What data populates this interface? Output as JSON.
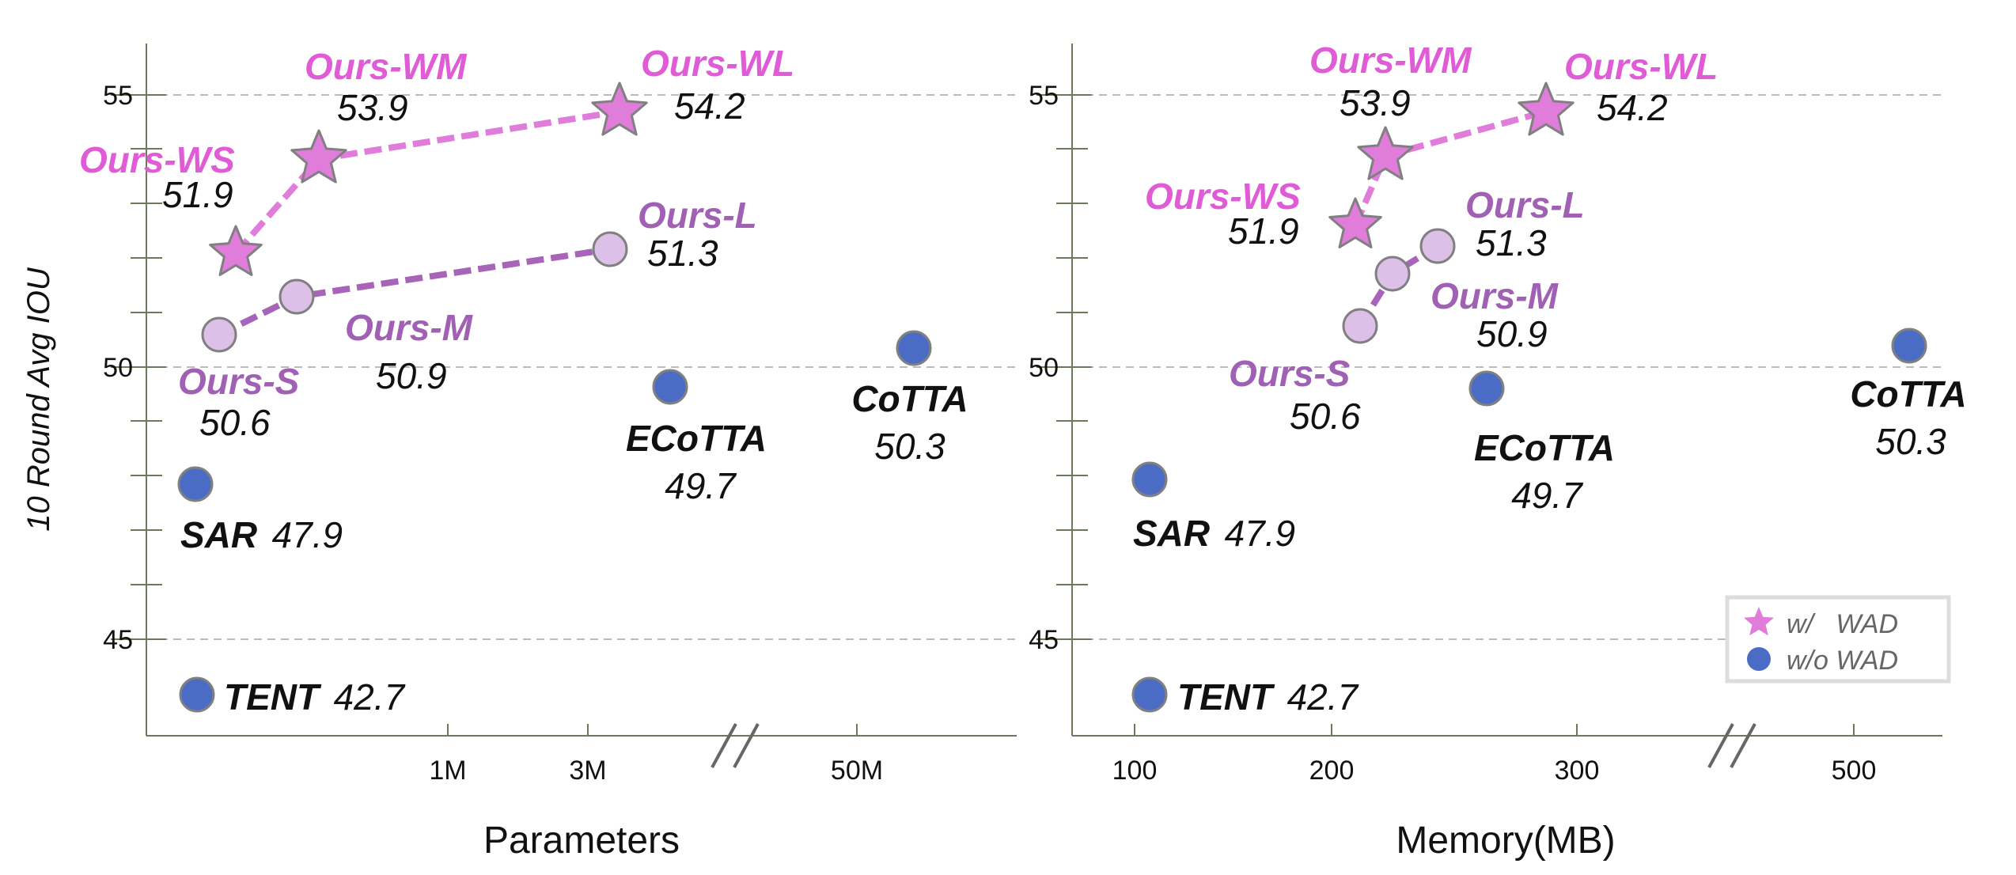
{
  "colors": {
    "wad": "#E07CDA",
    "wad_text": "#E05CD6",
    "ours": "#DCC0E8",
    "ours_line": "#A864B8",
    "ours_text": "#A060B4",
    "baseline": "#4A6CC4",
    "baseline_text": "#111111",
    "grid": "#BBBBBB",
    "axis": "#6B7A5B",
    "marker_edge": "#808080"
  },
  "chart_data": [
    {
      "type": "scatter",
      "xlabel": "Parameters",
      "ylabel": "10 Round Avg IOU",
      "x_scale": "categorical-broken",
      "x_tick_labels": [
        "1M",
        "3M",
        "50M"
      ],
      "y_ticks": [
        "45",
        "50",
        "55"
      ],
      "ylim": [
        43.5,
        56
      ],
      "grid": "horizontal dashed",
      "series": [
        {
          "name": "w/ WAD",
          "points": [
            {
              "label": "Ours-WS",
              "value": "51.9",
              "y": 51.9
            },
            {
              "label": "Ours-WM",
              "value": "53.9",
              "y": 53.9
            },
            {
              "label": "Ours-WL",
              "value": "54.2",
              "y": 54.2
            }
          ]
        },
        {
          "name": "Ours",
          "points": [
            {
              "label": "Ours-S",
              "value": "50.6",
              "y": 50.6
            },
            {
              "label": "Ours-M",
              "value": "50.9",
              "y": 50.9
            },
            {
              "label": "Ours-L",
              "value": "51.3",
              "y": 51.3
            }
          ]
        },
        {
          "name": "w/o WAD",
          "points": [
            {
              "label": "SAR",
              "value": "47.9",
              "y": 47.9
            },
            {
              "label": "TENT",
              "value": "42.7",
              "y": 42.7
            },
            {
              "label": "ECoTTA",
              "value": "49.7",
              "y": 49.7
            },
            {
              "label": "CoTTA",
              "value": "50.3",
              "y": 50.3
            }
          ]
        }
      ]
    },
    {
      "type": "scatter",
      "xlabel": "Memory(MB)",
      "ylabel": "",
      "x_tick_labels": [
        "100",
        "200",
        "300",
        "500"
      ],
      "y_ticks": [
        "45",
        "50",
        "55"
      ],
      "ylim": [
        43.5,
        56
      ],
      "grid": "horizontal dashed",
      "legend": {
        "position": "bottom-right",
        "entries": [
          "w/   WAD",
          "w/o WAD"
        ]
      },
      "series": [
        {
          "name": "w/ WAD",
          "points": [
            {
              "label": "Ours-WS",
              "value": "51.9",
              "y": 51.9
            },
            {
              "label": "Ours-WM",
              "value": "53.9",
              "y": 53.9
            },
            {
              "label": "Ours-WL",
              "value": "54.2",
              "y": 54.2
            }
          ]
        },
        {
          "name": "Ours",
          "points": [
            {
              "label": "Ours-S",
              "value": "50.6",
              "y": 50.6
            },
            {
              "label": "Ours-M",
              "value": "50.9",
              "y": 50.9
            },
            {
              "label": "Ours-L",
              "value": "51.3",
              "y": 51.3
            }
          ]
        },
        {
          "name": "w/o WAD",
          "points": [
            {
              "label": "SAR",
              "value": "47.9",
              "y": 47.9
            },
            {
              "label": "TENT",
              "value": "42.7",
              "y": 42.7
            },
            {
              "label": "ECoTTA",
              "value": "49.7",
              "y": 49.7
            },
            {
              "label": "CoTTA",
              "value": "50.3",
              "y": 50.3
            }
          ]
        }
      ]
    }
  ]
}
